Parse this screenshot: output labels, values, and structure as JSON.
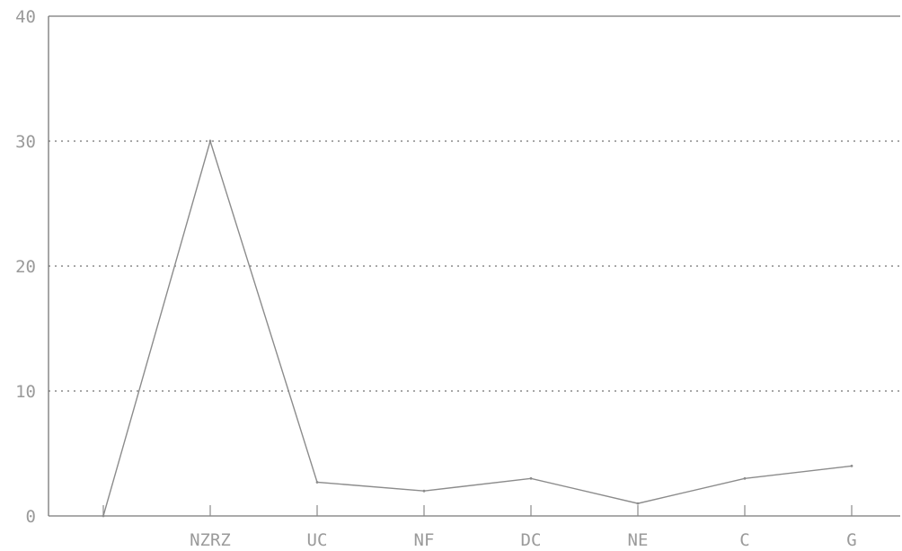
{
  "chart_data": {
    "type": "line",
    "categories": [
      "",
      "NZRZ",
      "UC",
      "NF",
      "DC",
      "NE",
      "C",
      "G"
    ],
    "values": [
      0,
      30,
      2.7,
      2,
      3,
      1,
      3,
      4
    ],
    "ylim": [
      0,
      40
    ],
    "yticks": [
      0,
      10,
      20,
      30,
      40
    ],
    "ytick_labels": [
      "0",
      "10",
      "20",
      "30",
      "40"
    ],
    "grid": "horizontal-dotted",
    "legend": "none",
    "colors": {
      "line": "#8c8c8c",
      "grid": "#8a8a8a",
      "text": "#9a9a9a"
    }
  }
}
